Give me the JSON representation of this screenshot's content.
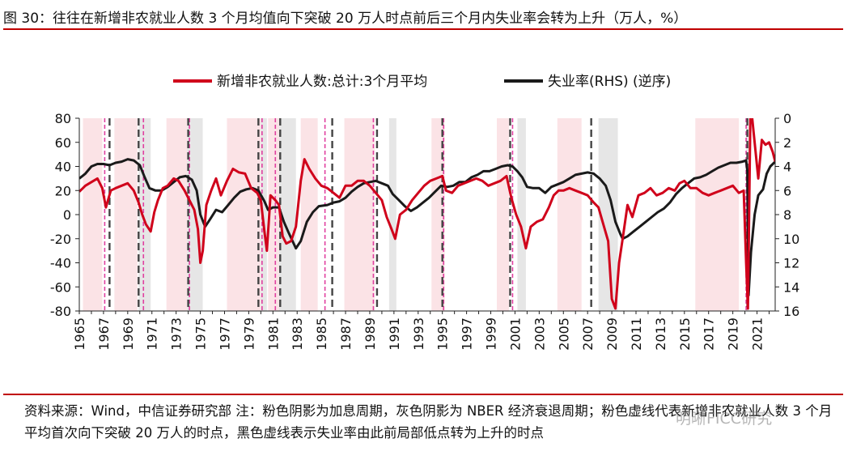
{
  "header": {
    "title": "图 30：往往在新增非农就业人数 3 个月均值向下突破 20 万人时点前后三个月内失业率会转为上升（万人，%）"
  },
  "footer": {
    "source_note": "资料来源：Wind，中信证券研究部 注：粉色阴影为加息周期，灰色阴影为 NBER 经济衰退周期；粉色虚线代表新增非农就业人数 3 个月平均首次向下突破 20 万人的时点，黑色虚线表示失业率由此前局部低点转为上升的时点",
    "watermark": "明晰FICC研究"
  },
  "colors": {
    "payrolls": "#d0021b",
    "unemployment": "#1a1a1a",
    "hike_shade": "#fbe3e6",
    "recession_shade": "#e6e6e6",
    "pink_dash": "#e040a0",
    "black_dash": "#444444"
  },
  "chart_data": {
    "type": "line",
    "title": "",
    "xlabel": "",
    "ylabel": "",
    "xlim": [
      1965,
      2022.5
    ],
    "ylim": [
      -80,
      80
    ],
    "y2lim": [
      0,
      16
    ],
    "y2_inverted": true,
    "grid": false,
    "legend_position": "top",
    "x_tick_labels": [
      "1965",
      "1967",
      "1969",
      "1971",
      "1973",
      "1975",
      "1977",
      "1979",
      "1981",
      "1983",
      "1985",
      "1987",
      "1989",
      "1991",
      "1993",
      "1995",
      "1997",
      "1999",
      "2001",
      "2003",
      "2005",
      "2007",
      "2009",
      "2011",
      "2013",
      "2015",
      "2017",
      "2019",
      "2021"
    ],
    "y_tick_labels": [
      "80",
      "60",
      "40",
      "20",
      "0",
      "-20",
      "-40",
      "-60",
      "-80"
    ],
    "y2_tick_labels": [
      "0",
      "2",
      "4",
      "6",
      "8",
      "10",
      "12",
      "14",
      "16"
    ],
    "series": [
      {
        "name": "新增非农就业人数:总计:3个月平均",
        "axis": "left",
        "points": [
          [
            1965.0,
            19
          ],
          [
            1965.5,
            24
          ],
          [
            1966.0,
            27
          ],
          [
            1966.5,
            30
          ],
          [
            1966.9,
            22
          ],
          [
            1967.2,
            6
          ],
          [
            1967.6,
            20
          ],
          [
            1968.0,
            22
          ],
          [
            1968.5,
            24
          ],
          [
            1969.0,
            26
          ],
          [
            1969.5,
            20
          ],
          [
            1969.9,
            10
          ],
          [
            1970.2,
            0
          ],
          [
            1970.5,
            -8
          ],
          [
            1970.9,
            -14
          ],
          [
            1971.2,
            2
          ],
          [
            1971.5,
            12
          ],
          [
            1971.9,
            22
          ],
          [
            1972.3,
            24
          ],
          [
            1972.8,
            30
          ],
          [
            1973.2,
            28
          ],
          [
            1973.7,
            20
          ],
          [
            1974.1,
            12
          ],
          [
            1974.5,
            4
          ],
          [
            1974.8,
            -12
          ],
          [
            1975.0,
            -40
          ],
          [
            1975.2,
            -30
          ],
          [
            1975.5,
            8
          ],
          [
            1975.9,
            20
          ],
          [
            1976.3,
            30
          ],
          [
            1976.7,
            16
          ],
          [
            1977.2,
            28
          ],
          [
            1977.7,
            38
          ],
          [
            1978.2,
            35
          ],
          [
            1978.7,
            34
          ],
          [
            1979.2,
            22
          ],
          [
            1979.7,
            18
          ],
          [
            1980.0,
            12
          ],
          [
            1980.3,
            -14
          ],
          [
            1980.5,
            -30
          ],
          [
            1980.8,
            16
          ],
          [
            1981.2,
            12
          ],
          [
            1981.5,
            8
          ],
          [
            1981.8,
            -18
          ],
          [
            1982.1,
            -24
          ],
          [
            1982.5,
            -22
          ],
          [
            1982.9,
            -10
          ],
          [
            1983.3,
            28
          ],
          [
            1983.6,
            46
          ],
          [
            1984.0,
            38
          ],
          [
            1984.5,
            30
          ],
          [
            1985.0,
            24
          ],
          [
            1985.5,
            22
          ],
          [
            1986.0,
            18
          ],
          [
            1986.5,
            14
          ],
          [
            1987.0,
            24
          ],
          [
            1987.5,
            24
          ],
          [
            1988.0,
            28
          ],
          [
            1988.5,
            28
          ],
          [
            1989.0,
            24
          ],
          [
            1989.5,
            18
          ],
          [
            1990.0,
            12
          ],
          [
            1990.4,
            -2
          ],
          [
            1990.8,
            -12
          ],
          [
            1991.1,
            -20
          ],
          [
            1991.5,
            0
          ],
          [
            1992.0,
            4
          ],
          [
            1992.5,
            12
          ],
          [
            1993.0,
            18
          ],
          [
            1993.5,
            24
          ],
          [
            1994.0,
            28
          ],
          [
            1994.5,
            30
          ],
          [
            1995.0,
            32
          ],
          [
            1995.3,
            20
          ],
          [
            1995.8,
            18
          ],
          [
            1996.3,
            24
          ],
          [
            1996.8,
            26
          ],
          [
            1997.3,
            28
          ],
          [
            1997.8,
            30
          ],
          [
            1998.3,
            28
          ],
          [
            1998.8,
            24
          ],
          [
            1999.3,
            26
          ],
          [
            1999.8,
            28
          ],
          [
            2000.3,
            32
          ],
          [
            2000.7,
            14
          ],
          [
            2001.1,
            0
          ],
          [
            2001.5,
            -10
          ],
          [
            2001.9,
            -28
          ],
          [
            2002.3,
            -10
          ],
          [
            2002.8,
            -6
          ],
          [
            2003.3,
            -4
          ],
          [
            2003.8,
            6
          ],
          [
            2004.2,
            16
          ],
          [
            2004.6,
            20
          ],
          [
            2005.0,
            20
          ],
          [
            2005.5,
            22
          ],
          [
            2006.0,
            20
          ],
          [
            2006.5,
            18
          ],
          [
            2007.0,
            16
          ],
          [
            2007.5,
            10
          ],
          [
            2007.9,
            6
          ],
          [
            2008.3,
            -8
          ],
          [
            2008.7,
            -22
          ],
          [
            2009.0,
            -70
          ],
          [
            2009.3,
            -78
          ],
          [
            2009.6,
            -40
          ],
          [
            2009.9,
            -20
          ],
          [
            2010.3,
            8
          ],
          [
            2010.7,
            -2
          ],
          [
            2011.2,
            16
          ],
          [
            2011.7,
            18
          ],
          [
            2012.2,
            22
          ],
          [
            2012.7,
            16
          ],
          [
            2013.2,
            18
          ],
          [
            2013.7,
            22
          ],
          [
            2014.2,
            20
          ],
          [
            2014.6,
            26
          ],
          [
            2015.0,
            28
          ],
          [
            2015.5,
            22
          ],
          [
            2016.0,
            22
          ],
          [
            2016.5,
            18
          ],
          [
            2017.0,
            16
          ],
          [
            2017.5,
            18
          ],
          [
            2018.0,
            20
          ],
          [
            2018.5,
            22
          ],
          [
            2019.0,
            24
          ],
          [
            2019.5,
            18
          ],
          [
            2019.9,
            20
          ],
          [
            2020.1,
            -40
          ],
          [
            2020.25,
            -78
          ],
          [
            2020.45,
            80
          ],
          [
            2020.6,
            80
          ],
          [
            2020.9,
            50
          ],
          [
            2021.1,
            30
          ],
          [
            2021.4,
            62
          ],
          [
            2021.7,
            58
          ],
          [
            2022.0,
            60
          ],
          [
            2022.3,
            52
          ],
          [
            2022.5,
            44
          ]
        ]
      },
      {
        "name": "失业率(RHS) (逆序)",
        "axis": "right",
        "points": [
          [
            1965.0,
            5.0
          ],
          [
            1965.5,
            4.6
          ],
          [
            1966.0,
            4.0
          ],
          [
            1966.5,
            3.8
          ],
          [
            1967.0,
            3.8
          ],
          [
            1967.5,
            3.9
          ],
          [
            1968.0,
            3.7
          ],
          [
            1968.5,
            3.6
          ],
          [
            1969.0,
            3.4
          ],
          [
            1969.5,
            3.5
          ],
          [
            1970.0,
            3.9
          ],
          [
            1970.4,
            4.9
          ],
          [
            1970.8,
            5.8
          ],
          [
            1971.3,
            6.0
          ],
          [
            1971.8,
            6.0
          ],
          [
            1972.3,
            5.7
          ],
          [
            1972.8,
            5.3
          ],
          [
            1973.3,
            4.9
          ],
          [
            1973.8,
            4.8
          ],
          [
            1974.3,
            5.1
          ],
          [
            1974.7,
            6.0
          ],
          [
            1975.0,
            8.0
          ],
          [
            1975.4,
            9.0
          ],
          [
            1975.8,
            8.4
          ],
          [
            1976.3,
            7.6
          ],
          [
            1976.8,
            7.8
          ],
          [
            1977.3,
            7.2
          ],
          [
            1977.8,
            6.6
          ],
          [
            1978.3,
            6.1
          ],
          [
            1978.8,
            5.9
          ],
          [
            1979.3,
            5.8
          ],
          [
            1979.8,
            6.0
          ],
          [
            1980.3,
            6.9
          ],
          [
            1980.6,
            7.6
          ],
          [
            1981.0,
            7.4
          ],
          [
            1981.5,
            7.4
          ],
          [
            1981.9,
            8.6
          ],
          [
            1982.3,
            9.5
          ],
          [
            1982.9,
            10.8
          ],
          [
            1983.3,
            10.2
          ],
          [
            1983.8,
            8.6
          ],
          [
            1984.3,
            7.8
          ],
          [
            1984.8,
            7.3
          ],
          [
            1985.5,
            7.2
          ],
          [
            1986.0,
            7.0
          ],
          [
            1986.5,
            6.9
          ],
          [
            1987.0,
            6.6
          ],
          [
            1987.5,
            6.1
          ],
          [
            1988.0,
            5.7
          ],
          [
            1988.5,
            5.4
          ],
          [
            1989.0,
            5.3
          ],
          [
            1989.5,
            5.2
          ],
          [
            1990.0,
            5.4
          ],
          [
            1990.5,
            5.6
          ],
          [
            1990.9,
            6.3
          ],
          [
            1991.4,
            6.8
          ],
          [
            1991.9,
            7.3
          ],
          [
            1992.4,
            7.7
          ],
          [
            1992.9,
            7.4
          ],
          [
            1993.4,
            7.0
          ],
          [
            1993.9,
            6.6
          ],
          [
            1994.4,
            6.1
          ],
          [
            1994.9,
            5.6
          ],
          [
            1995.4,
            5.7
          ],
          [
            1995.9,
            5.6
          ],
          [
            1996.4,
            5.3
          ],
          [
            1996.9,
            5.3
          ],
          [
            1997.4,
            4.9
          ],
          [
            1997.9,
            4.7
          ],
          [
            1998.4,
            4.4
          ],
          [
            1998.9,
            4.4
          ],
          [
            1999.4,
            4.2
          ],
          [
            1999.9,
            4.0
          ],
          [
            2000.4,
            3.9
          ],
          [
            2000.8,
            4.0
          ],
          [
            2001.2,
            4.4
          ],
          [
            2001.6,
            4.9
          ],
          [
            2002.0,
            5.7
          ],
          [
            2002.5,
            5.8
          ],
          [
            2003.0,
            5.8
          ],
          [
            2003.5,
            6.2
          ],
          [
            2004.0,
            5.7
          ],
          [
            2004.5,
            5.5
          ],
          [
            2005.0,
            5.3
          ],
          [
            2005.5,
            5.0
          ],
          [
            2006.0,
            4.7
          ],
          [
            2006.5,
            4.6
          ],
          [
            2007.0,
            4.5
          ],
          [
            2007.5,
            4.6
          ],
          [
            2008.0,
            5.0
          ],
          [
            2008.5,
            5.6
          ],
          [
            2008.9,
            6.8
          ],
          [
            2009.3,
            8.6
          ],
          [
            2009.7,
            9.6
          ],
          [
            2009.9,
            10.0
          ],
          [
            2010.3,
            9.8
          ],
          [
            2010.8,
            9.4
          ],
          [
            2011.3,
            9.0
          ],
          [
            2011.8,
            8.6
          ],
          [
            2012.3,
            8.2
          ],
          [
            2012.8,
            7.8
          ],
          [
            2013.3,
            7.5
          ],
          [
            2013.8,
            7.0
          ],
          [
            2014.3,
            6.3
          ],
          [
            2014.8,
            5.8
          ],
          [
            2015.3,
            5.4
          ],
          [
            2015.8,
            5.0
          ],
          [
            2016.3,
            4.9
          ],
          [
            2016.8,
            4.7
          ],
          [
            2017.3,
            4.4
          ],
          [
            2017.8,
            4.1
          ],
          [
            2018.3,
            3.9
          ],
          [
            2018.8,
            3.7
          ],
          [
            2019.3,
            3.7
          ],
          [
            2019.8,
            3.6
          ],
          [
            2020.1,
            3.5
          ],
          [
            2020.2,
            4.4
          ],
          [
            2020.3,
            14.7
          ],
          [
            2020.5,
            11.1
          ],
          [
            2020.8,
            8.0
          ],
          [
            2021.1,
            6.4
          ],
          [
            2021.5,
            5.9
          ],
          [
            2021.8,
            4.6
          ],
          [
            2022.1,
            4.0
          ],
          [
            2022.5,
            3.6
          ]
        ]
      }
    ],
    "hike_periods": [
      [
        1965.3,
        1966.9
      ],
      [
        1967.9,
        1969.8
      ],
      [
        1972.2,
        1974.6
      ],
      [
        1977.2,
        1980.4
      ],
      [
        1980.6,
        1981.5
      ],
      [
        1983.3,
        1984.7
      ],
      [
        1986.9,
        1989.4
      ],
      [
        1994.1,
        1995.2
      ],
      [
        1999.5,
        2000.5
      ],
      [
        2004.5,
        2006.5
      ],
      [
        2015.9,
        2019.5
      ]
    ],
    "recession_periods": [
      [
        1969.9,
        1970.9
      ],
      [
        1973.9,
        1975.2
      ],
      [
        1980.0,
        1980.5
      ],
      [
        1981.5,
        1982.9
      ],
      [
        1990.6,
        1991.2
      ],
      [
        2001.2,
        2001.9
      ],
      [
        2007.9,
        2009.5
      ],
      [
        2020.1,
        2020.3
      ]
    ],
    "pink_dashed_lines": [
      1967.1,
      1970.3,
      1974.1,
      1980.1,
      1981.2,
      1985.3,
      1989.3,
      1995.1,
      2000.8,
      2020.1
    ],
    "black_dashed_lines": [
      1967.5,
      1969.9,
      1974.0,
      1979.8,
      1981.6,
      1985.9,
      1989.6,
      1995.0,
      2000.6,
      2007.3,
      2020.2
    ]
  }
}
